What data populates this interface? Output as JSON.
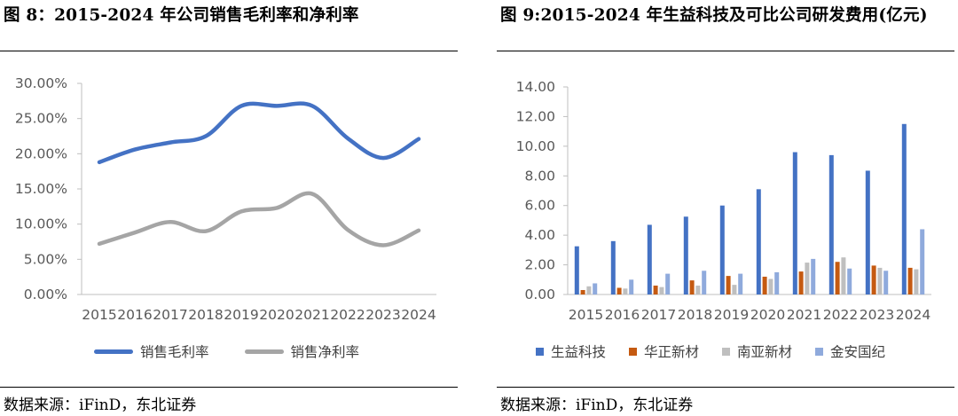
{
  "left": {
    "title": "图 8：2015-2024 年公司销售毛利率和净利率",
    "source": "数据来源：iFinD，东北证券",
    "chart_data": {
      "type": "line",
      "categories": [
        "2015",
        "2016",
        "2017",
        "2018",
        "2019",
        "2020",
        "2021",
        "2022",
        "2023",
        "2024"
      ],
      "y_ticks": [
        "30.00%",
        "25.00%",
        "20.00%",
        "15.00%",
        "10.00%",
        "5.00%",
        "0.00%"
      ],
      "ylim": [
        0,
        30
      ],
      "grid": false,
      "legend_position": "bottom",
      "series": [
        {
          "name": "销售毛利率",
          "color": "#4472C4",
          "values": [
            18.8,
            20.6,
            21.6,
            22.5,
            26.8,
            26.8,
            26.8,
            22.2,
            19.4,
            22.1
          ]
        },
        {
          "name": "销售净利率",
          "color": "#A5A5A5",
          "values": [
            7.2,
            8.8,
            10.3,
            9.0,
            11.8,
            12.3,
            14.3,
            9.2,
            7.0,
            9.1
          ]
        }
      ]
    }
  },
  "right": {
    "title": "图 9:2015-2024 年生益科技及可比公司研发费用(亿元)",
    "source": "数据来源：iFinD，东北证券",
    "chart_data": {
      "type": "bar",
      "categories": [
        "2015",
        "2016",
        "2017",
        "2018",
        "2019",
        "2020",
        "2021",
        "2022",
        "2023",
        "2024"
      ],
      "y_ticks": [
        "14.00",
        "12.00",
        "10.00",
        "8.00",
        "6.00",
        "4.00",
        "2.00",
        "0.00"
      ],
      "ylim": [
        0,
        14
      ],
      "grid": false,
      "legend_position": "bottom",
      "series": [
        {
          "name": "生益科技",
          "color": "#4472C4",
          "values": [
            3.25,
            3.6,
            4.7,
            5.25,
            6.0,
            7.1,
            9.6,
            9.4,
            8.35,
            11.5
          ]
        },
        {
          "name": "华正新材",
          "color": "#C55A11",
          "values": [
            0.3,
            0.45,
            0.6,
            0.95,
            1.25,
            1.2,
            1.55,
            2.2,
            1.95,
            1.8
          ]
        },
        {
          "name": "南亚新材",
          "color": "#BFBFBF",
          "values": [
            0.55,
            0.4,
            0.5,
            0.6,
            0.65,
            1.05,
            2.15,
            2.5,
            1.8,
            1.7
          ]
        },
        {
          "name": "金安国纪",
          "color": "#8FAADC",
          "values": [
            0.75,
            1.0,
            1.4,
            1.6,
            1.4,
            1.5,
            2.4,
            1.75,
            1.6,
            4.4
          ]
        }
      ]
    }
  }
}
